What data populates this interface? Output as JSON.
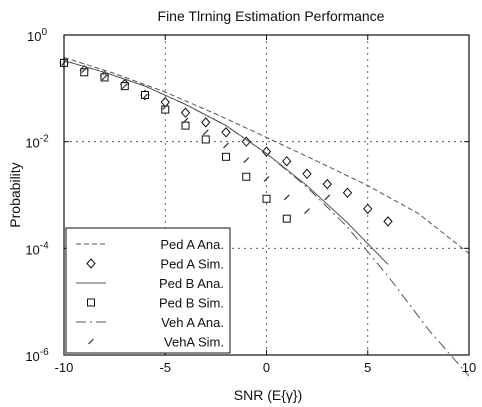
{
  "chart_data": {
    "type": "line",
    "title": "Fine Tlrning Estimation Performance",
    "xlabel": "SNR (E{γ})",
    "ylabel": "Probability",
    "xlim": [
      -10,
      10
    ],
    "ylim": [
      1e-06,
      1
    ],
    "yscale": "log",
    "grid": true,
    "legend_position": "bottom-left",
    "x_ticks": [
      {
        "value": -10,
        "label": "-10"
      },
      {
        "value": -5,
        "label": "-5"
      },
      {
        "value": 0,
        "label": "0"
      },
      {
        "value": 5,
        "label": "5"
      },
      {
        "value": 10,
        "label": "10"
      }
    ],
    "y_ticks": [
      {
        "value": 1,
        "base": "10",
        "exp": "0"
      },
      {
        "value": 0.01,
        "base": "10",
        "exp": "-2"
      },
      {
        "value": 0.0001,
        "base": "10",
        "exp": "-4"
      },
      {
        "value": 1e-06,
        "base": "10",
        "exp": "-6"
      }
    ],
    "series": [
      {
        "name": "Ped A Ana.",
        "style": "line",
        "dash": "5,3",
        "x": [
          -10,
          -7.5,
          -5,
          -2.5,
          0,
          2.5,
          5,
          7.5,
          10
        ],
        "y": [
          0.38,
          0.19,
          0.085,
          0.033,
          0.012,
          0.0043,
          0.0015,
          0.00045,
          8e-05
        ]
      },
      {
        "name": "Ped A Sim.",
        "style": "markers",
        "marker": "diamond",
        "x": [
          -10,
          -9,
          -8,
          -7,
          -6,
          -5,
          -4,
          -3,
          -2,
          -1,
          0,
          1,
          2,
          3,
          4,
          5,
          6
        ],
        "y": [
          0.3,
          0.22,
          0.17,
          0.12,
          0.075,
          0.055,
          0.035,
          0.023,
          0.015,
          0.01,
          0.0065,
          0.0043,
          0.0025,
          0.0016,
          0.0011,
          0.00055,
          0.00032
        ]
      },
      {
        "name": "Ped B Ana.",
        "style": "line",
        "dash": "",
        "x": [
          -10,
          -8,
          -6,
          -4,
          -2,
          0,
          2,
          4,
          6
        ],
        "y": [
          0.33,
          0.2,
          0.11,
          0.05,
          0.02,
          0.006,
          0.0015,
          0.0003,
          5e-05
        ]
      },
      {
        "name": "Ped B Sim.",
        "style": "markers",
        "marker": "square",
        "x": [
          -10,
          -9,
          -8,
          -7,
          -6,
          -5,
          -4,
          -3,
          -2,
          -1,
          0,
          1
        ],
        "y": [
          0.3,
          0.2,
          0.16,
          0.11,
          0.075,
          0.04,
          0.02,
          0.011,
          0.0052,
          0.0022,
          0.00085,
          0.00036
        ]
      },
      {
        "name": "Veh A Ana.",
        "style": "line",
        "dash": "10,4,2,4",
        "x": [
          -10,
          -8,
          -6,
          -4,
          -2,
          0,
          2,
          4,
          6,
          8,
          10
        ],
        "y": [
          0.33,
          0.2,
          0.11,
          0.05,
          0.02,
          0.006,
          0.0014,
          0.00025,
          3e-05,
          3e-06,
          4e-07
        ]
      },
      {
        "name": "VehA Sim.",
        "style": "markers",
        "marker": "tick",
        "x": [
          -10,
          -9,
          -8,
          -7,
          -6,
          -5,
          -4,
          -3,
          -2,
          -1,
          0,
          1,
          2,
          3
        ],
        "y": [
          0.3,
          0.22,
          0.16,
          0.11,
          0.07,
          0.045,
          0.025,
          0.015,
          0.0085,
          0.0045,
          0.002,
          0.0009,
          0.0005,
          0.0009
        ]
      }
    ]
  }
}
